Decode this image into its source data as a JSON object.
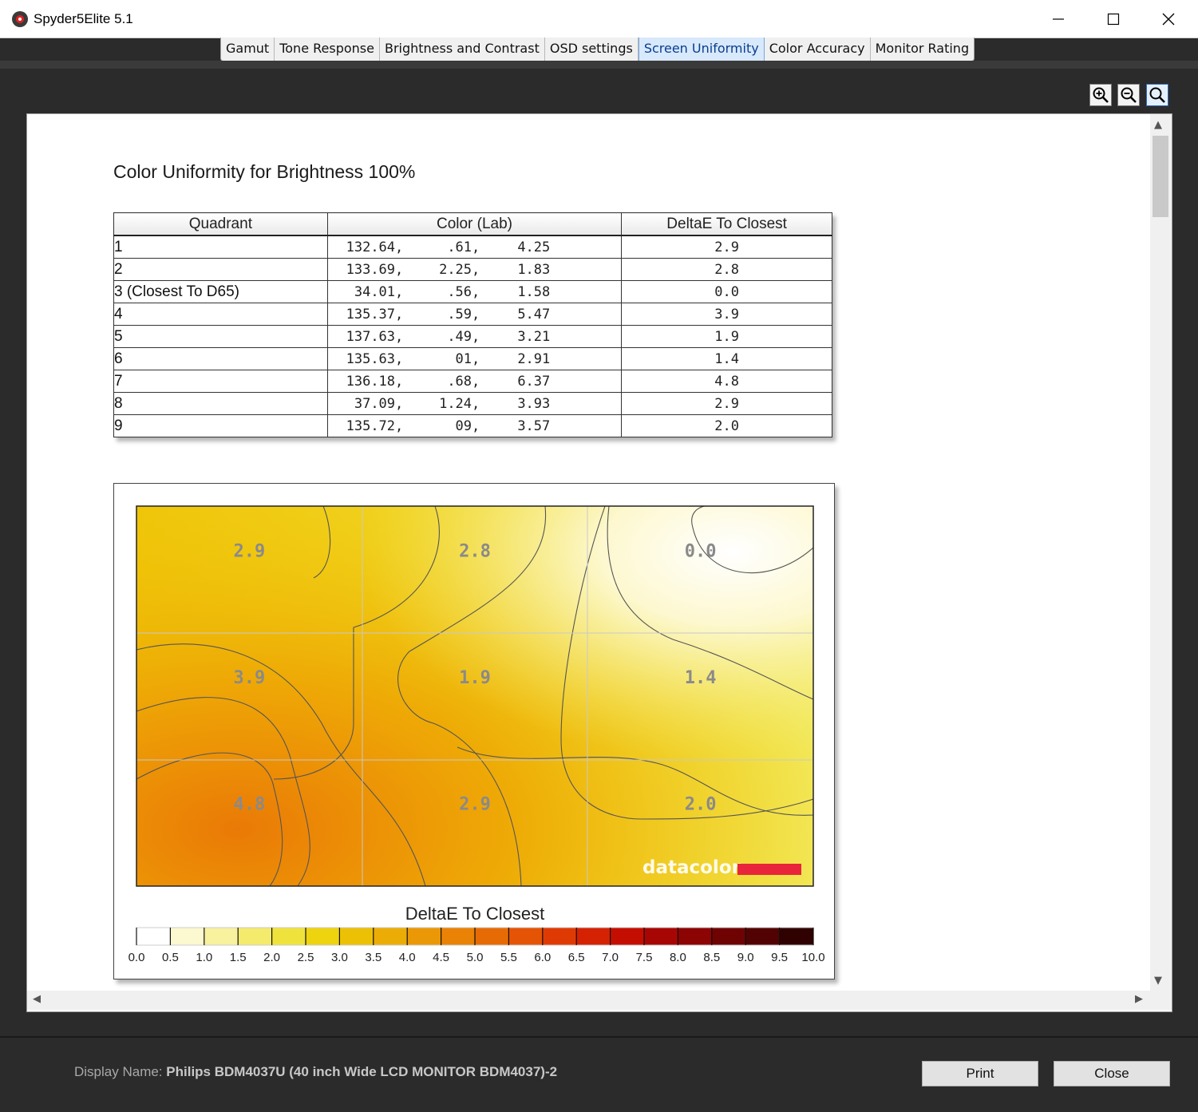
{
  "window": {
    "title": "Spyder5Elite 5.1"
  },
  "tabs": [
    {
      "label": "Gamut"
    },
    {
      "label": "Tone Response"
    },
    {
      "label": "Brightness and Contrast"
    },
    {
      "label": "OSD settings"
    },
    {
      "label": "Screen Uniformity",
      "active": true
    },
    {
      "label": "Color Accuracy"
    },
    {
      "label": "Monitor Rating"
    }
  ],
  "zoom": {
    "buttons": [
      "zoom-in-icon",
      "zoom-out-icon",
      "zoom-fit-icon"
    ]
  },
  "report": {
    "title": "Color Uniformity for Brightness 100%",
    "table": {
      "headers": [
        "Quadrant",
        "Color (Lab)",
        "DeltaE To Closest"
      ],
      "rows": [
        {
          "quadrant": "1",
          "L": "132.64,",
          "a": ".61,",
          "b": "4.25",
          "delta": "2.9"
        },
        {
          "quadrant": "2",
          "L": "133.69,",
          "a": "2.25,",
          "b": "1.83",
          "delta": "2.8"
        },
        {
          "quadrant": "3 (Closest To D65)",
          "L": "34.01,",
          "a": ".56,",
          "b": "1.58",
          "delta": "0.0"
        },
        {
          "quadrant": "4",
          "L": "135.37,",
          "a": ".59,",
          "b": "5.47",
          "delta": "3.9"
        },
        {
          "quadrant": "5",
          "L": "137.63,",
          "a": ".49,",
          "b": "3.21",
          "delta": "1.9"
        },
        {
          "quadrant": "6",
          "L": "135.63,",
          "a": "01,",
          "b": "2.91",
          "delta": "1.4"
        },
        {
          "quadrant": "7",
          "L": "136.18,",
          "a": ".68,",
          "b": "6.37",
          "delta": "4.8"
        },
        {
          "quadrant": "8",
          "L": "37.09,",
          "a": "1.24,",
          "b": "3.93",
          "delta": "2.9"
        },
        {
          "quadrant": "9",
          "L": "135.72,",
          "a": "09,",
          "b": "3.57",
          "delta": "2.0"
        }
      ]
    }
  },
  "chart_data": {
    "type": "heatmap",
    "grid": {
      "rows": 3,
      "cols": 3
    },
    "cells": [
      [
        2.9,
        2.8,
        0.0
      ],
      [
        3.9,
        1.9,
        1.4
      ],
      [
        4.8,
        2.9,
        2.0
      ]
    ],
    "cell_labels": [
      [
        "2.9",
        "2.8",
        "0.0"
      ],
      [
        "3.9",
        "1.9",
        "1.4"
      ],
      [
        "4.8",
        "2.9",
        "2.0"
      ]
    ],
    "watermark": "datacolor",
    "colorbar": {
      "title": "DeltaE To Closest",
      "range": [
        0.0,
        10.0
      ],
      "ticks": [
        "0.0",
        "0.5",
        "1.0",
        "1.5",
        "2.0",
        "2.5",
        "3.0",
        "3.5",
        "4.0",
        "4.5",
        "5.0",
        "5.5",
        "6.0",
        "6.5",
        "7.0",
        "7.5",
        "8.0",
        "8.5",
        "9.0",
        "9.5",
        "10.0"
      ],
      "colors": [
        "#ffffff",
        "#fcf8cf",
        "#f8f19e",
        "#f4ea6c",
        "#f0e23c",
        "#eed30f",
        "#ecc105",
        "#ebad05",
        "#ea9805",
        "#e98205",
        "#e76b05",
        "#e55304",
        "#e03a04",
        "#d52203",
        "#c50e02",
        "#a80604",
        "#8c0404",
        "#6f0303",
        "#520202",
        "#300101"
      ]
    }
  },
  "footer": {
    "display_label": "Display Name:",
    "display_value": "Philips BDM4037U (40 inch Wide LCD MONITOR BDM4037)-2",
    "print_label": "Print",
    "close_label": "Close"
  }
}
